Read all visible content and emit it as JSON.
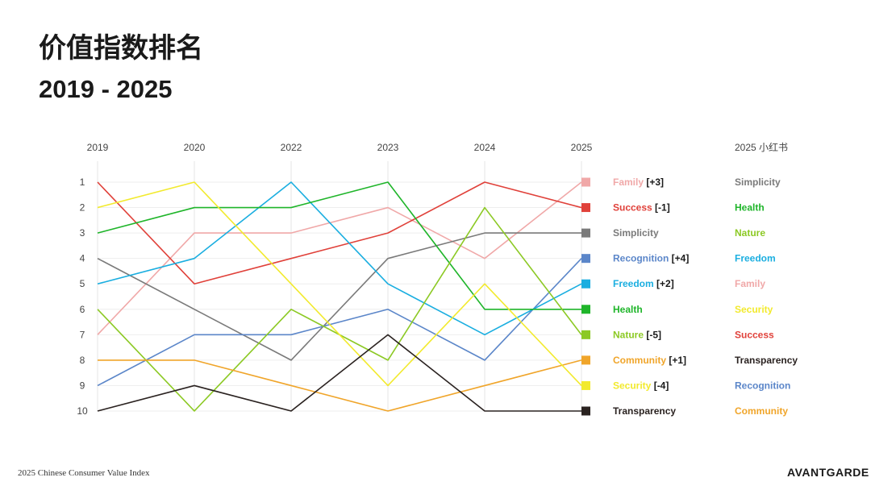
{
  "title": "价值指数排名",
  "subtitle": "2019 - 2025",
  "footer": {
    "left": "2025 Chinese Consumer Value Index",
    "brand": "AVANTGARDE"
  },
  "chart_data": {
    "type": "line",
    "subtype": "bump",
    "x": [
      "2019",
      "2020",
      "2022",
      "2023",
      "2024",
      "2025"
    ],
    "y_ticks": [
      1,
      2,
      3,
      4,
      5,
      6,
      7,
      8,
      9,
      10
    ],
    "ylim": [
      1,
      10
    ],
    "y_inverted": true,
    "grid": true,
    "series": [
      {
        "name": "Family",
        "change": "[+3]",
        "color": "#f0a8a8",
        "values": [
          7,
          3,
          3,
          2,
          4,
          1
        ]
      },
      {
        "name": "Success",
        "change": "[-1]",
        "color": "#e0413a",
        "values": [
          1,
          5,
          4,
          3,
          1,
          2
        ]
      },
      {
        "name": "Simplicity",
        "change": "",
        "color": "#7a7a7a",
        "values": [
          4,
          6,
          8,
          4,
          3,
          3
        ]
      },
      {
        "name": "Recognition",
        "change": "[+4]",
        "color": "#5b86c9",
        "values": [
          9,
          7,
          7,
          6,
          8,
          4
        ]
      },
      {
        "name": "Freedom",
        "change": "[+2]",
        "color": "#1aaee0",
        "values": [
          5,
          4,
          1,
          5,
          7,
          5
        ]
      },
      {
        "name": "Health",
        "change": "",
        "color": "#1fb52a",
        "values": [
          3,
          2,
          2,
          1,
          6,
          6
        ]
      },
      {
        "name": "Nature",
        "change": "[-5]",
        "color": "#8cc924",
        "values": [
          6,
          10,
          6,
          8,
          2,
          7
        ]
      },
      {
        "name": "Community",
        "change": "[+1]",
        "color": "#f0a52a",
        "values": [
          8,
          8,
          9,
          10,
          9,
          8
        ]
      },
      {
        "name": "Security",
        "change": "[-4]",
        "color": "#f2ea2e",
        "values": [
          2,
          1,
          5,
          9,
          5,
          9
        ]
      },
      {
        "name": "Transparency",
        "change": "",
        "color": "#2a2220",
        "values": [
          10,
          9,
          10,
          7,
          10,
          10
        ]
      }
    ],
    "xhs_ranking": {
      "title": "2025 小红书",
      "items": [
        {
          "name": "Simplicity",
          "color": "#7a7a7a"
        },
        {
          "name": "Health",
          "color": "#1fb52a"
        },
        {
          "name": "Nature",
          "color": "#8cc924"
        },
        {
          "name": "Freedom",
          "color": "#1aaee0"
        },
        {
          "name": "Family",
          "color": "#f0a8a8"
        },
        {
          "name": "Security",
          "color": "#f2ea2e"
        },
        {
          "name": "Success",
          "color": "#e0413a"
        },
        {
          "name": "Transparency",
          "color": "#2a2220"
        },
        {
          "name": "Recognition",
          "color": "#5b86c9"
        },
        {
          "name": "Community",
          "color": "#f0a52a"
        }
      ]
    }
  }
}
